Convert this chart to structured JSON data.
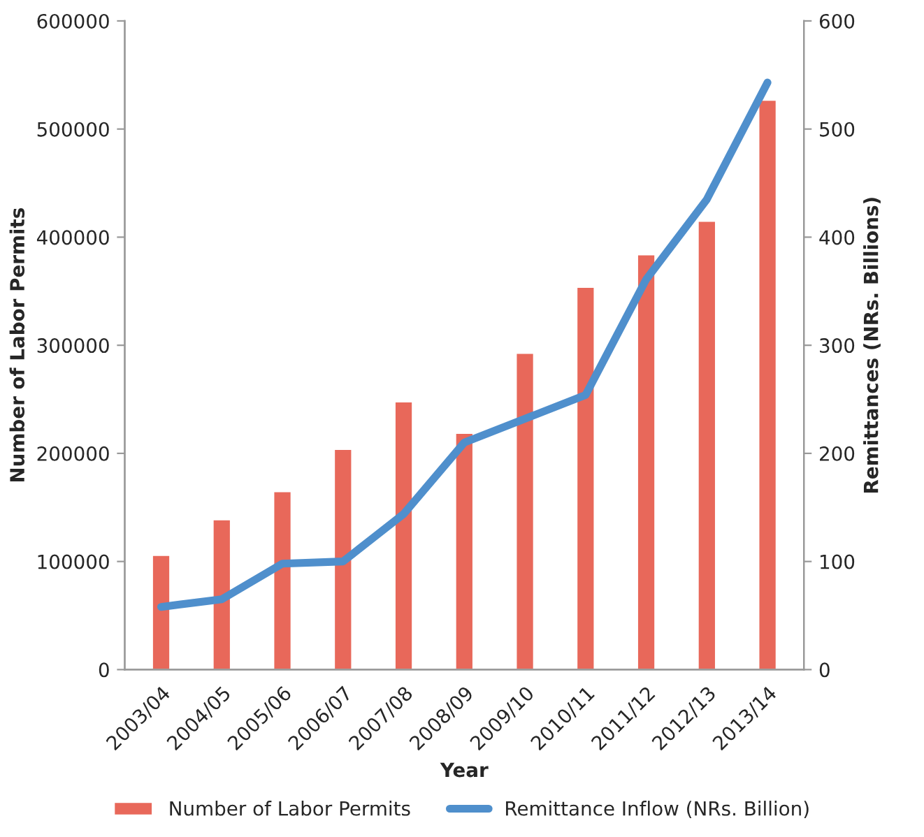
{
  "chart_data": {
    "type": "bar",
    "xlabel": "Year",
    "ylabel": "Number of Labor Permits",
    "y2label": "Remittances (NRs. Billions)",
    "categories": [
      "2003/04",
      "2004/05",
      "2005/06",
      "2006/07",
      "2007/08",
      "2008/09",
      "2009/10",
      "2010/11",
      "2011/12",
      "2012/13",
      "2013/14"
    ],
    "series": [
      {
        "name": "Number of Labor Permits",
        "color": "#e8685a",
        "values": [
          106000,
          139000,
          165000,
          204000,
          248000,
          219000,
          293000,
          354000,
          384000,
          415000,
          527000
        ]
      },
      {
        "name": "Remittance Inflow (NRs. Billion)",
        "type": "line",
        "axis": "y2",
        "color": "#4f8fcc",
        "values": [
          58,
          65,
          98,
          100,
          144,
          210,
          232,
          254,
          361,
          435,
          543
        ]
      }
    ],
    "ylim": [
      0,
      600000
    ],
    "yticks": [
      0,
      100000,
      200000,
      300000,
      400000,
      500000,
      600000
    ],
    "y2lim": [
      0,
      600
    ],
    "y2ticks": [
      0,
      100,
      200,
      300,
      400,
      500,
      600
    ],
    "grid": false,
    "legend": "bottom",
    "marker": "none",
    "line_style": "solid"
  }
}
